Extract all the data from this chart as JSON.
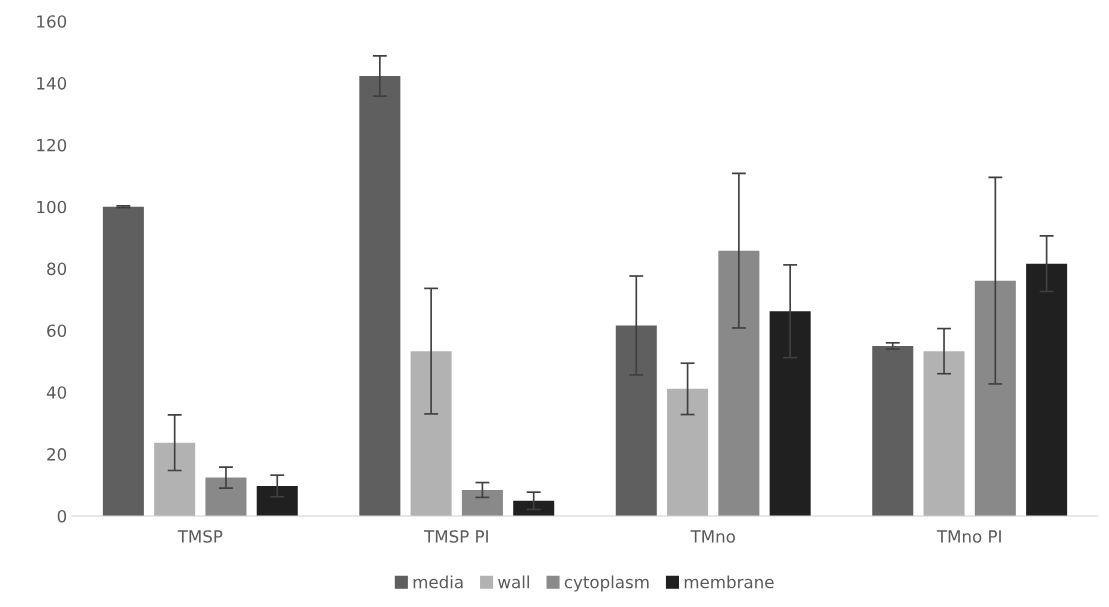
{
  "chart_data": {
    "type": "bar",
    "categories": [
      "TMSP",
      "TMSP PI",
      "TMno",
      "TMno PI"
    ],
    "series": [
      {
        "name": "media",
        "color": "#5f5f5f",
        "values": [
          100,
          142.3,
          61.6,
          55.0
        ],
        "errors": [
          0.3,
          6.5,
          16,
          1
        ]
      },
      {
        "name": "wall",
        "color": "#b2b2b2",
        "values": [
          23.7,
          53.3,
          41.1,
          53.3
        ],
        "errors": [
          9,
          20.3,
          8.3,
          7.3
        ]
      },
      {
        "name": "cytoplasm",
        "color": "#898989",
        "values": [
          12.4,
          8.4,
          85.8,
          76.1
        ],
        "errors": [
          3.4,
          2.4,
          25,
          33.4
        ]
      },
      {
        "name": "membrane",
        "color": "#202020",
        "values": [
          9.7,
          4.9,
          66.2,
          81.6
        ],
        "errors": [
          3.5,
          2.8,
          15,
          9
        ]
      }
    ],
    "ylim": [
      0,
      160
    ],
    "yticks": [
      0,
      20,
      40,
      60,
      80,
      100,
      120,
      140,
      160
    ],
    "grid": false,
    "legend": "bottom"
  }
}
